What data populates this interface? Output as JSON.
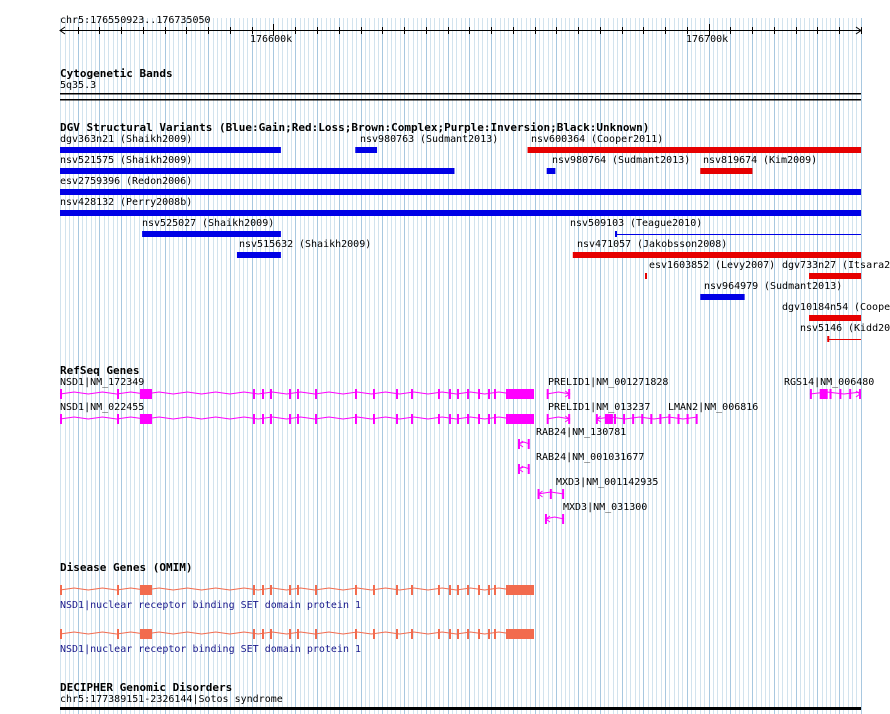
{
  "ruler": {
    "range_label": "chr5:176550923..176735050",
    "start": 176550923,
    "end": 176735050,
    "ticks": [
      {
        "pos": 176600000,
        "label": "176600k"
      },
      {
        "pos": 176700000,
        "label": "176700k"
      }
    ]
  },
  "cytoband": {
    "title": "Cytogenetic Bands",
    "band": "5q35.3"
  },
  "dgv": {
    "title": "DGV Structural Variants (Blue:Gain;Red:Loss;Brown:Complex;Purple:Inversion;Black:Unknown)",
    "colors": {
      "gain": "#0000e6",
      "loss": "#e60000"
    },
    "variants": [
      {
        "id": "dgv363n21",
        "source": "Shaikh2009",
        "type": "gain",
        "start": 176550923,
        "end": 176601700,
        "row": 0
      },
      {
        "id": "nsv980763",
        "source": "Sudmant2013",
        "type": "gain",
        "start": 176618800,
        "end": 176623800,
        "row": 0
      },
      {
        "id": "nsv600364",
        "source": "Cooper2011",
        "type": "loss",
        "start": 176658400,
        "end": 176735050,
        "row": 0
      },
      {
        "id": "nsv521575",
        "source": "Shaikh2009",
        "type": "gain",
        "start": 176550923,
        "end": 176641600,
        "row": 1
      },
      {
        "id": "nsv980764",
        "source": "Sudmant2013",
        "type": "gain",
        "start": 176662800,
        "end": 176664800,
        "row": 1
      },
      {
        "id": "nsv819674",
        "source": "Kim2009",
        "type": "loss",
        "start": 176698100,
        "end": 176710100,
        "row": 1
      },
      {
        "id": "esv2759396",
        "source": "Redon2006",
        "type": "gain",
        "start": 176550923,
        "end": 176735050,
        "row": 2
      },
      {
        "id": "nsv428132",
        "source": "Perry2008b",
        "type": "gain",
        "start": 176550923,
        "end": 176735050,
        "row": 3
      },
      {
        "id": "nsv525027",
        "source": "Shaikh2009",
        "type": "gain",
        "start": 176569800,
        "end": 176601700,
        "row": 4
      },
      {
        "id": "nsv509103",
        "source": "Teague2010",
        "type": "gain",
        "start": 176678500,
        "end": 176735050,
        "row": 4
      },
      {
        "id": "nsv515632",
        "source": "Shaikh2009",
        "type": "gain",
        "start": 176591600,
        "end": 176601700,
        "row": 5
      },
      {
        "id": "nsv471057",
        "source": "Jakobsson2008",
        "type": "loss",
        "start": 176668800,
        "end": 176735050,
        "row": 5
      },
      {
        "id": "esv1603852",
        "source": "Levy2007",
        "type": "loss",
        "start": 176685400,
        "end": 176685800,
        "row": 6
      },
      {
        "id": "dgv733n27",
        "source": "Itsara2",
        "type": "loss",
        "start": 176723100,
        "end": 176735050,
        "row": 6
      },
      {
        "id": "nsv964979",
        "source": "Sudmant2013",
        "type": "gain",
        "start": 176698100,
        "end": 176708300,
        "row": 7
      },
      {
        "id": "dgv10184n54",
        "source": "Coope",
        "type": "loss",
        "start": 176723100,
        "end": 176735050,
        "row": 8
      },
      {
        "id": "nsv5146",
        "source": "Kidd20",
        "type": "loss",
        "start": 176727300,
        "end": 176735050,
        "row": 9
      }
    ]
  },
  "refseq": {
    "title": "RefSeq Genes",
    "color": "#ff00ff",
    "genes": [
      {
        "label": "NSD1|NM_172349",
        "start": 176550923,
        "end": 176658300,
        "strand": "+",
        "row": 0
      },
      {
        "label": "PRELID1|NM_001271828",
        "start": 176662800,
        "end": 176668200,
        "strand": "+",
        "row": 0
      },
      {
        "label": "RGS14|NM_006480",
        "start": 176723300,
        "end": 176735050,
        "strand": "+",
        "row": 0
      },
      {
        "label": "NSD1|NM_022455",
        "start": 176550923,
        "end": 176658300,
        "strand": "+",
        "row": 1
      },
      {
        "label": "PRELID1|NM_013237",
        "start": 176662800,
        "end": 176668200,
        "strand": "+",
        "row": 1
      },
      {
        "label": "LMAN2|NM_006816",
        "start": 176674100,
        "end": 176697500,
        "strand": "-",
        "row": 1
      },
      {
        "label": "RAB24|NM_130781",
        "start": 176656200,
        "end": 176658900,
        "strand": "-",
        "row": 2
      },
      {
        "label": "RAB24|NM_001031677",
        "start": 176656200,
        "end": 176658900,
        "strand": "-",
        "row": 3
      },
      {
        "label": "MXD3|NM_001142935",
        "start": 176660700,
        "end": 176666800,
        "strand": "-",
        "row": 4
      },
      {
        "label": "MXD3|NM_031300",
        "start": 176662400,
        "end": 176666800,
        "strand": "-",
        "row": 5
      }
    ]
  },
  "omim": {
    "title": "Disease Genes (OMIM)",
    "color": "#f26b4e",
    "genes": [
      {
        "label": "NSD1|nuclear receptor binding SET domain protein 1",
        "start": 176550923,
        "end": 176658300
      },
      {
        "label": "NSD1|nuclear receptor binding SET domain protein 1",
        "start": 176550923,
        "end": 176658300
      }
    ]
  },
  "decipher": {
    "title": "DECIPHER Genomic Disorders",
    "items": [
      {
        "label": "chr5:177389151-2326144|Sotos syndrome"
      }
    ]
  }
}
